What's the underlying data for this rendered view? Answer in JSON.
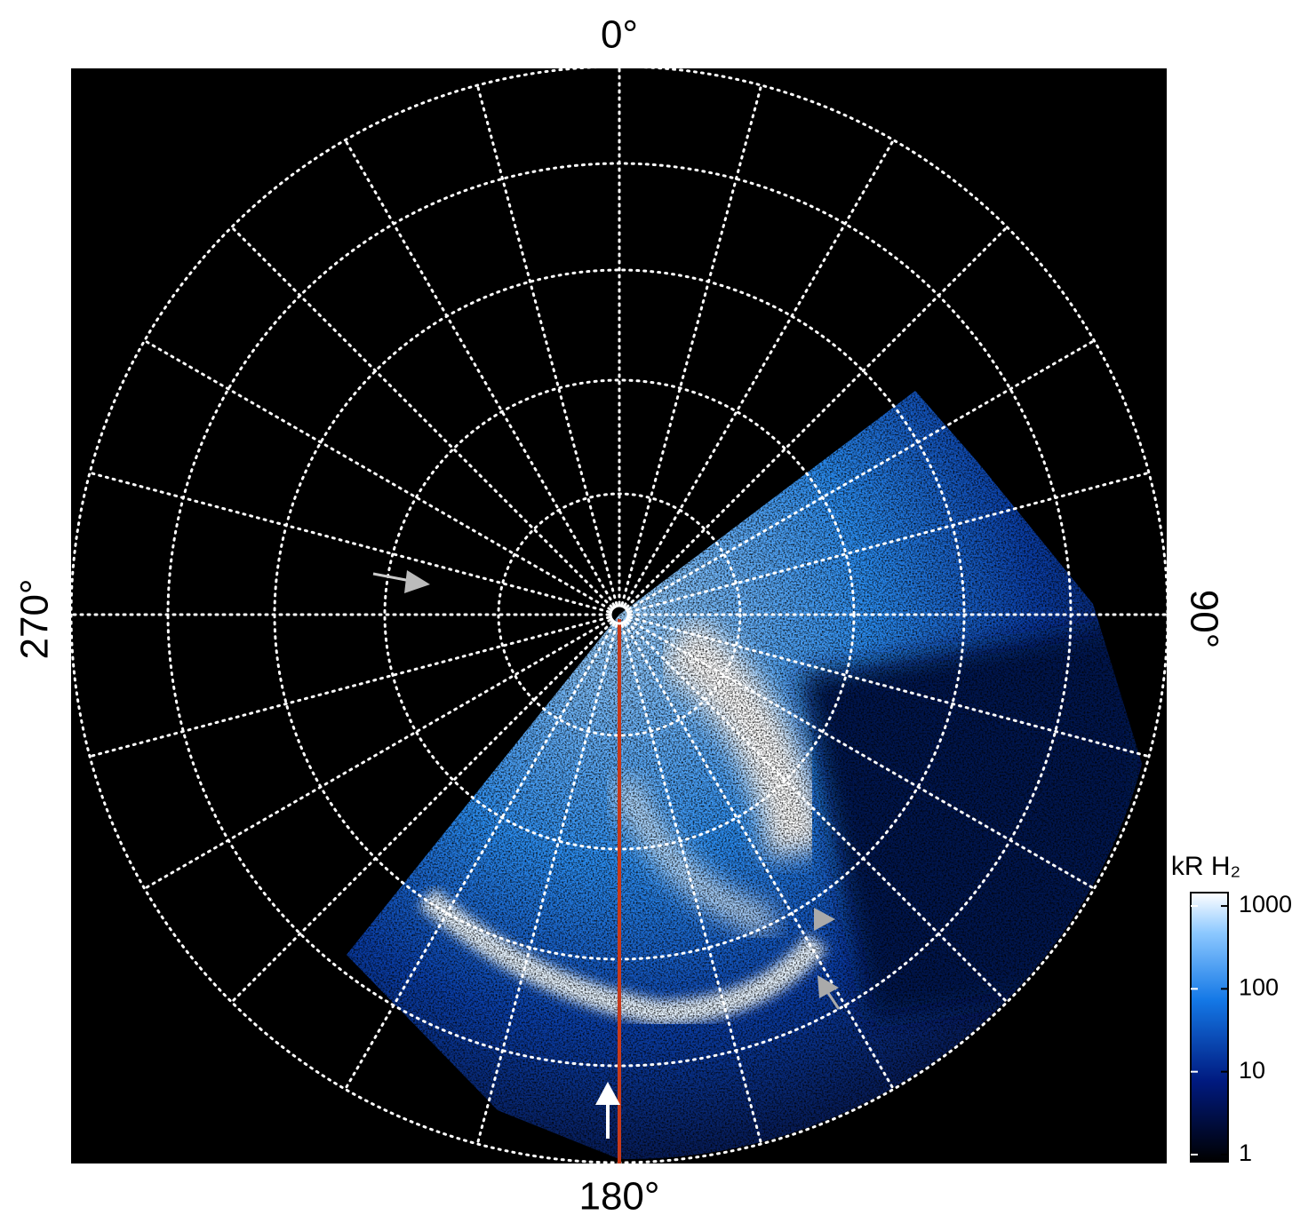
{
  "axis_labels": {
    "top": "0°",
    "right": "90°",
    "bottom": "180°",
    "left": "270°"
  },
  "colorbar": {
    "title": "kR H₂",
    "log": true,
    "lim": [
      0.82,
      1450
    ],
    "ticks": [
      1,
      10,
      100,
      1000
    ]
  }
}
